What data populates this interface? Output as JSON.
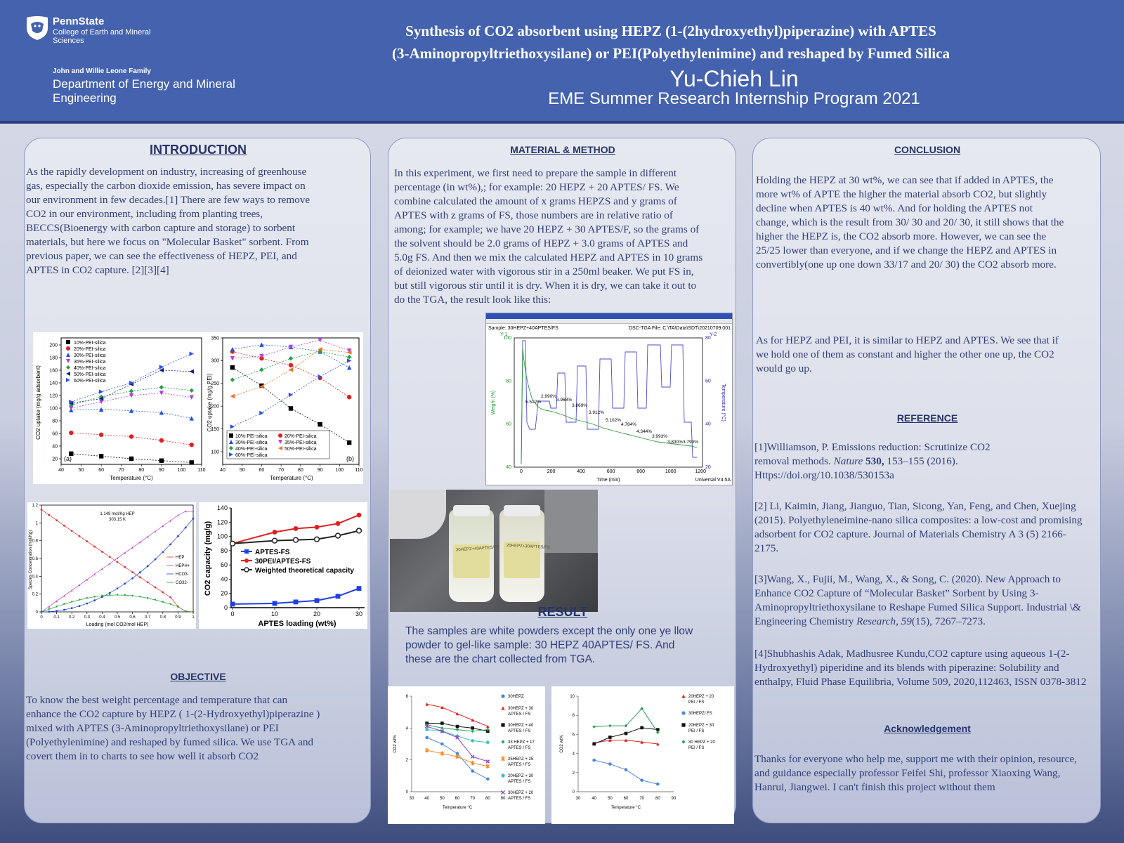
{
  "header": {
    "psu_name": "PennState",
    "psu_college": "College of Earth and Mineral Sciences",
    "dept_family": "John and Willie Leone Family",
    "dept_name": "Department of Energy and Mineral Engineering",
    "title_line1": "Synthesis of CO2 absorbent using HEPZ (1-(2hydroxyethyl)piperazine) with APTES",
    "title_line2": "(3-Aminopropyltriethoxysilane) or PEI(Polyethylenimine) and reshaped by Fumed Silica",
    "author": "Yu-Chieh Lin",
    "program": "EME Summer Research Internship Program 2021"
  },
  "introduction": {
    "heading": "INTRODUCTION",
    "text": "As the rapidly development on industry,  increasing of greenhouse gas, especially the carbon dioxide emission, has severe impact on our environment in few decades.[1] There are few ways to remove CO2 in our environment, including from planting trees, BECCS(Bioenergy  with carbon capture and storage) to sorbent materials, but here we focus on \"Molecular Basket\" sorbent. From previous paper, we can see the effectiveness of HEPZ, PEI, and APTES in CO2 capture. [2][3][4]"
  },
  "objective": {
    "heading": "OBJECTIVE",
    "text": "To know the best weight percentage and temperature that can enhance the CO2 capture by HEPZ ( 1-(2-Hydroxyethyl)piperazine ) mixed with APTES (3-Aminopropyltriethoxysilane) or PEI (Polyethylenimine) and reshaped by fumed silica. We use TGA and covert them in to charts to see how well it absorb CO2"
  },
  "method": {
    "heading": "MATERIAL & METHOD",
    "text": "In this experiment, we first need to prepare the sample in different percentage (in wt%),; for example: 20 HEPZ + 20 APTES/ FS. We combine calculated the amount of x grams HEPZS and y grams of APTES with z grams of FS, those numbers are in relative ratio of among; for example; we have 20 HEPZ + 30 APTES/F, so the grams of the solvent should be 2.0 grams of HEPZ + 3.0 grams of APTES and 5.0g FS. And then we mix the calculated HEPZ and APTES in 10 grams of deionized water with vigorous stir in a 250ml beaker. We put FS in, but still vigorous stir until it is dry. When it is dry, we can take it out to do the TGA, the result look like this:"
  },
  "result": {
    "heading": "RESULT",
    "text": "The samples are white powders except the only one ye llow powder to gel-like sample: 30 HEPZ 40APTES/ FS. And these are the chart collected from TGA."
  },
  "conclusion": {
    "heading": "CONCLUSION",
    "p1": "Holding the HEPZ at 30 wt%, we can see that if added in APTES, the more wt% of APTE the higher the material absorb CO2, but slightly decline when APTES is 40 wt%. And for holding the APTES not change, which is the result from 30/ 30 and 20/ 30, it still shows that the higher the HEPZ is, the CO2 absorb more. However, we can see the 25/25 lower than everyone, and if we change the HEPZ and APTES in convertibly(one up one down 33/17 and 20/ 30) the CO2 absorb more.",
    "p2": "As for HEPZ and PEI, it is similar to HEPZ and APTES. We see that if we hold one of them as constant and higher the other one up, the CO2 would go up."
  },
  "reference": {
    "heading": "REFERENCE",
    "r1a": "[1]Williamson, P. Emissions reduction: Scrutinize CO2 removal  methods. ",
    "r1_journal": "Nature",
    "r1_vol": " 530,",
    "r1b": " 153–155 (2016).  Https://doi.org/10.1038/530153a",
    "r2": "[2] Li, Kaimin, Jiang, Jianguo, Tian, Sicong, Yan, Feng, and Chen, Xuejing (2015). Polyethyleneimine-nano silica composites: a low-cost and promising adsorbent for CO2 capture. Journal of Materials Chemistry A 3 (5) 2166-2175.",
    "r3a": "[3]Wang, X., Fujii, M., Wang, X., & Song, C. (2020). New Approach to Enhance CO2 Capture of “Molecular Basket” Sorbent by Using 3-Aminopropyltriethoxysilane to Reshape Fumed Silica Support. Industrial \\& Engineering Chemistry ",
    "r3_journal": "Research",
    "r3_mid": ", ",
    "r3_vol": "59",
    "r3b": "(15), 7267–7273.",
    "r4": "[4]Shubhashis Adak, Madhusree Kundu,CO2 capture using aqueous 1-(2-Hydroxyethyl) piperidine and its blends with piperazine: Solubility and enthalpy, Fluid Phase Equilibria, Volume 509, 2020,112463, ISSN 0378-3812"
  },
  "acknowledgement": {
    "heading": "Acknowledgement",
    "text": "Thanks for everyone who help me, support me with their opinion, resource, and guidance especially professor Feifei Shi, professor Xiaoxing Wang, Hanrui, Jiangwei. I can't finish this project without them"
  },
  "figures": {
    "fig_a": {
      "xlabel": "Temperature (°C)",
      "ylabel": "CO2 uptake (mg/g adsorbent)",
      "panel_label": "(a)",
      "legend": [
        "10%-PEI-silica",
        "20%-PEI-silica",
        "30%-PEI-silica",
        "35%-PEI-silica",
        "40%-PEI-silica",
        "50%-PEI-silica",
        "60%-PEI-silica"
      ],
      "xticks": [
        "40",
        "50",
        "60",
        "70",
        "80",
        "90",
        "100",
        "110"
      ],
      "yticks": [
        "20",
        "40",
        "60",
        "80",
        "100",
        "120",
        "140",
        "160",
        "180",
        "200"
      ]
    },
    "fig_b": {
      "xlabel": "Temperature (°C)",
      "ylabel": "CO2 uptake (mg/g PEI)",
      "panel_label": "(b)",
      "legend": [
        "10%-PEI-silica",
        "20%-PEI-silica",
        "30%-PEI-silica",
        "35%-PEI-silica",
        "40%-PEI-silica",
        "50%-PEI-silica",
        "60%-PEI-silica"
      ],
      "xticks": [
        "40",
        "50",
        "60",
        "70",
        "80",
        "90",
        "100",
        "110"
      ],
      "yticks": [
        "100",
        "150",
        "200",
        "250",
        "300",
        "350"
      ]
    },
    "fig_c": {
      "annotation1": "1.149 mol/Kg HEP",
      "annotation2": "303.15 K",
      "xlabel": "Loading (mol CO2/mol HEP)",
      "ylabel": "Species Concentration (mol/Kg)",
      "legend": [
        "HEP",
        "HEPH+",
        "HCO3-",
        "CO32-"
      ],
      "xticks": [
        "0",
        "0.1",
        "0.2",
        "0.3",
        "0.4",
        "0.5",
        "0.6",
        "0.7",
        "0.8",
        "0.9",
        "1"
      ],
      "yticks": [
        "0",
        "0.2",
        "0.4",
        "0.6",
        "0.8",
        "1",
        "1.2"
      ]
    },
    "fig_d": {
      "xlabel": "APTES loading (wt%)",
      "ylabel": "CO2 capacity (mg/g)",
      "legend": [
        "APTES-FS",
        "30PEI/APTES-FS",
        "Weighted theoretical capacity"
      ],
      "xticks": [
        "0",
        "10",
        "20",
        "30"
      ],
      "yticks": [
        "0",
        "20",
        "40",
        "60",
        "80",
        "100",
        "120",
        "140"
      ]
    },
    "tga": {
      "sample": "Sample: 30HEPZ+40APTES/FS",
      "file": "DSC-TGA File: C:\\TA\\Data\\SDT\\20210709.001",
      "y1": "Y-1",
      "y2": "Y-2",
      "ylabel_left": "Weight (%)",
      "ylabel_right": "Temperature (°C)",
      "xlabel": "Time (min)",
      "footer": "Universal V4.5A",
      "annotations": [
        "5.512%",
        "2.990%",
        "3.968%",
        "3.869%",
        "3.912%",
        "5.102%",
        "4.784%",
        "4.344%",
        "3.993%",
        "3.830%",
        "3.793%"
      ],
      "xticks": [
        "0",
        "200",
        "400",
        "600",
        "800",
        "1000",
        "1200"
      ],
      "yticks_left": [
        "40",
        "60",
        "80",
        "100"
      ],
      "yticks_right": [
        "20",
        "40",
        "60",
        "80"
      ]
    },
    "photo": {
      "label1": "30HEPZ+40APTES/FS",
      "label2": "20HEPZ+30APTES/FS"
    }
  },
  "chart_data": [
    {
      "type": "line",
      "title": "",
      "xlabel": "Temperature °C",
      "ylabel": "CO2 wt%",
      "xlim": [
        30,
        90
      ],
      "ylim": [
        0,
        6
      ],
      "xticks": [
        30,
        40,
        50,
        60,
        70,
        80,
        90
      ],
      "yticks": [
        0,
        2,
        4,
        6
      ],
      "legend_position": "right",
      "x": [
        40,
        50,
        60,
        70,
        80
      ],
      "series": [
        {
          "name": "30HEPZ",
          "color": "#4a86d8",
          "marker": "circle",
          "values": [
            3.4,
            3.0,
            2.4,
            1.3,
            0.8
          ]
        },
        {
          "name": "30HEPZ + 30 APTES / FS",
          "color": "#e02020",
          "marker": "triangle",
          "values": [
            5.5,
            5.3,
            4.9,
            4.5,
            4.1
          ]
        },
        {
          "name": "30HEPZ + 40 APTES / FS",
          "color": "#111111",
          "marker": "square",
          "values": [
            4.3,
            4.3,
            4.1,
            4.0,
            3.8
          ]
        },
        {
          "name": "33 HEPZ + 17 APTES / FS",
          "color": "#2ca05a",
          "marker": "diamond",
          "values": [
            4.2,
            4.0,
            3.9,
            3.8,
            3.9
          ]
        },
        {
          "name": "25HEPZ + 25 APTES / FS",
          "color": "#f08a24",
          "marker": "star",
          "values": [
            2.6,
            2.4,
            2.2,
            1.8,
            1.6
          ]
        },
        {
          "name": "20HEPZ + 30 APTES / FS",
          "color": "#38c0c0",
          "marker": "circle",
          "values": [
            3.9,
            3.8,
            3.5,
            3.2,
            3.1
          ]
        },
        {
          "name": "30HEPZ + 20 APTES / FS",
          "color": "#8a3fc0",
          "marker": "x",
          "values": [
            4.1,
            3.8,
            3.4,
            2.2,
            1.9
          ]
        }
      ]
    },
    {
      "type": "line",
      "title": "",
      "xlabel": "Temperature °C",
      "ylabel": "CO2 wt%",
      "xlim": [
        30,
        90
      ],
      "ylim": [
        0,
        10
      ],
      "xticks": [
        30,
        40,
        50,
        60,
        70,
        80,
        90
      ],
      "yticks": [
        0,
        2,
        4,
        6,
        8,
        10
      ],
      "legend_position": "right",
      "x": [
        40,
        50,
        60,
        70,
        80
      ],
      "series": [
        {
          "name": "20HEPZ + 20 PEI / FS",
          "color": "#e02020",
          "marker": "triangle",
          "values": [
            5.1,
            5.4,
            5.4,
            5.2,
            5.0
          ]
        },
        {
          "name": "30HEPZ/ FS",
          "color": "#4a86d8",
          "marker": "circle",
          "values": [
            3.3,
            2.9,
            2.3,
            1.2,
            0.8
          ]
        },
        {
          "name": "20HEPZ + 30 PEI / FS",
          "color": "#111111",
          "marker": "square",
          "values": [
            5.0,
            5.7,
            6.1,
            6.7,
            6.5
          ]
        },
        {
          "name": "30 HEPZ + 20 PEI / FS",
          "color": "#2ca05a",
          "marker": "diamond",
          "values": [
            6.8,
            6.9,
            6.9,
            8.7,
            6.2
          ]
        }
      ]
    }
  ]
}
